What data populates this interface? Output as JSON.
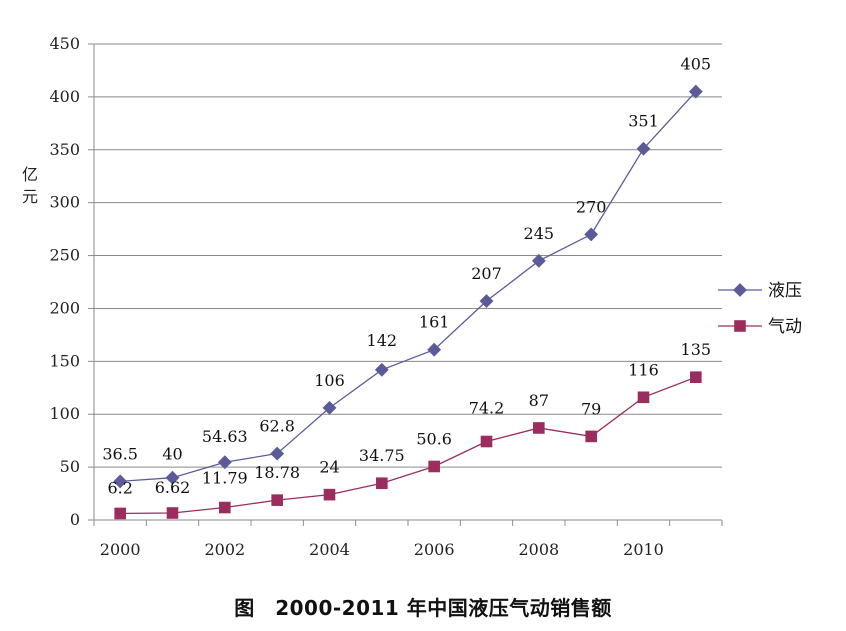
{
  "caption": "图　2000-2011 年中国液压气动销售额",
  "chart_data": {
    "type": "line",
    "ylabel": "亿元",
    "ylabel_chars": [
      "亿",
      "元"
    ],
    "ylim": [
      0,
      450
    ],
    "yticks": [
      0,
      50,
      100,
      150,
      200,
      250,
      300,
      350,
      400,
      450
    ],
    "x": [
      2000,
      2001,
      2002,
      2003,
      2004,
      2005,
      2006,
      2007,
      2008,
      2009,
      2010,
      2011
    ],
    "xtick_labels": [
      "2000",
      "2002",
      "2004",
      "2006",
      "2008",
      "2010"
    ],
    "grid": true,
    "legend": "right",
    "series": [
      {
        "name": "液压",
        "marker": "diamond",
        "color": "#5b5b9a",
        "values": [
          36.5,
          40,
          54.63,
          62.8,
          106,
          142,
          161,
          207,
          245,
          270,
          351,
          405
        ],
        "labels": [
          "36.5",
          "40",
          "54.63",
          "62.8",
          "106",
          "142",
          "161",
          "207",
          "245",
          "270",
          "351",
          "405"
        ]
      },
      {
        "name": "气动",
        "marker": "square",
        "color": "#9b2d5e",
        "values": [
          6.2,
          6.62,
          11.79,
          18.78,
          24,
          34.75,
          50.6,
          74.2,
          87,
          79,
          116,
          135
        ],
        "labels": [
          "6.2",
          "6.62",
          "11.79",
          "18.78",
          "24",
          "34.75",
          "50.6",
          "74.2",
          "87",
          "79",
          "116",
          "135"
        ]
      }
    ]
  }
}
